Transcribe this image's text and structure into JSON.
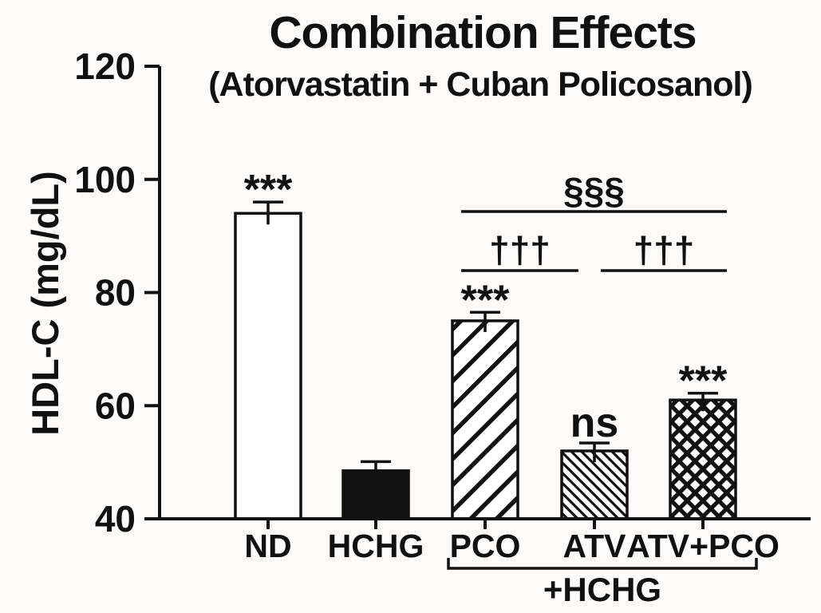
{
  "colors": {
    "ink": "#111111",
    "background": "#fcfbf9",
    "open_bar_fill": "#ffffff"
  },
  "chart_data": {
    "type": "bar",
    "title": "Combination Effects",
    "subtitle": "(Atorvastatin + Cuban Policosanol)",
    "xlabel": "",
    "ylabel": "HDL-C (mg/dL)",
    "ylim": [
      40,
      120
    ],
    "yticks": [
      40,
      60,
      80,
      100,
      120
    ],
    "grid": false,
    "legend": false,
    "categories": [
      "ND",
      "HCHG",
      "PCO",
      "ATV",
      "ATV+PCO"
    ],
    "values": [
      94,
      48.5,
      75,
      52,
      61
    ],
    "errors": [
      2,
      1.6,
      1.5,
      1.4,
      1.2
    ],
    "error_direction": "upper-only",
    "sig_labels": [
      "***",
      "",
      "***",
      "ns",
      "***"
    ],
    "bar_styles": [
      "open",
      "solid",
      "hatch-diagonal-up",
      "hatch-diagonal-down-fine",
      "crosshatch"
    ],
    "comparisons": [
      {
        "label": "§§§",
        "from": "PCO",
        "to": "ATV+PCO",
        "row": 0
      },
      {
        "label": "†††",
        "from": "PCO",
        "to": "ATV",
        "row": 1
      },
      {
        "label": "†††",
        "from": "ATV",
        "to": "ATV+PCO",
        "row": 1
      }
    ],
    "group_bracket": {
      "label": "+HCHG",
      "from": "PCO",
      "to": "ATV+PCO"
    }
  }
}
